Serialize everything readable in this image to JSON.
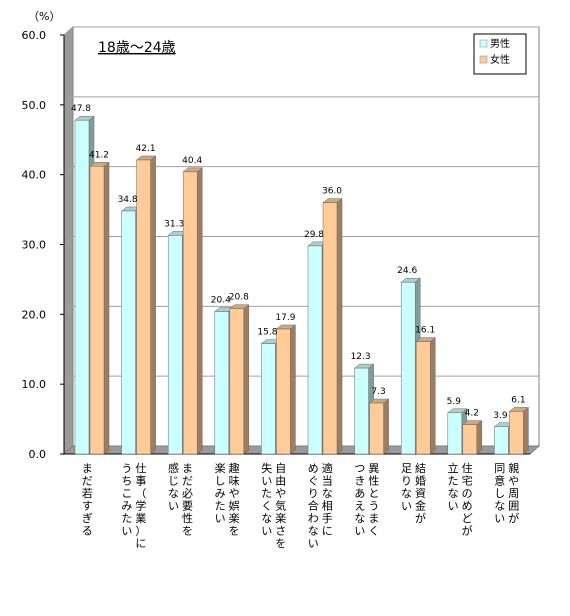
{
  "chart_data": {
    "type": "bar",
    "title": "18歳～24歳",
    "ylabel": "（%）",
    "ylim": [
      0,
      60
    ],
    "yticks": [
      "0.0",
      "10.0",
      "20.0",
      "30.0",
      "40.0",
      "50.0",
      "60.0"
    ],
    "grid": true,
    "legend_position": "top-right",
    "categories": [
      "まだ若すぎる",
      "仕事（学業）に\nうちこみたい",
      "まだ必要性を\n感じない",
      "趣味や娯楽を\n楽しみたい",
      "自由や気楽さを\n失いたくない",
      "適当な相手に\nめぐり合わない",
      "異性とうまく\nつきあえない",
      "結婚資金が\n足りない",
      "住宅のめどが\n立たない",
      "親や周囲が\n同意しない"
    ],
    "series": [
      {
        "name": "男性",
        "color": "#ccffff",
        "values": [
          47.8,
          34.8,
          31.3,
          20.4,
          15.8,
          29.8,
          12.3,
          24.6,
          5.9,
          3.9
        ]
      },
      {
        "name": "女性",
        "color": "#ffcc99",
        "values": [
          41.2,
          42.1,
          40.4,
          20.8,
          17.9,
          36.0,
          7.3,
          16.1,
          4.2,
          6.1
        ]
      }
    ]
  }
}
